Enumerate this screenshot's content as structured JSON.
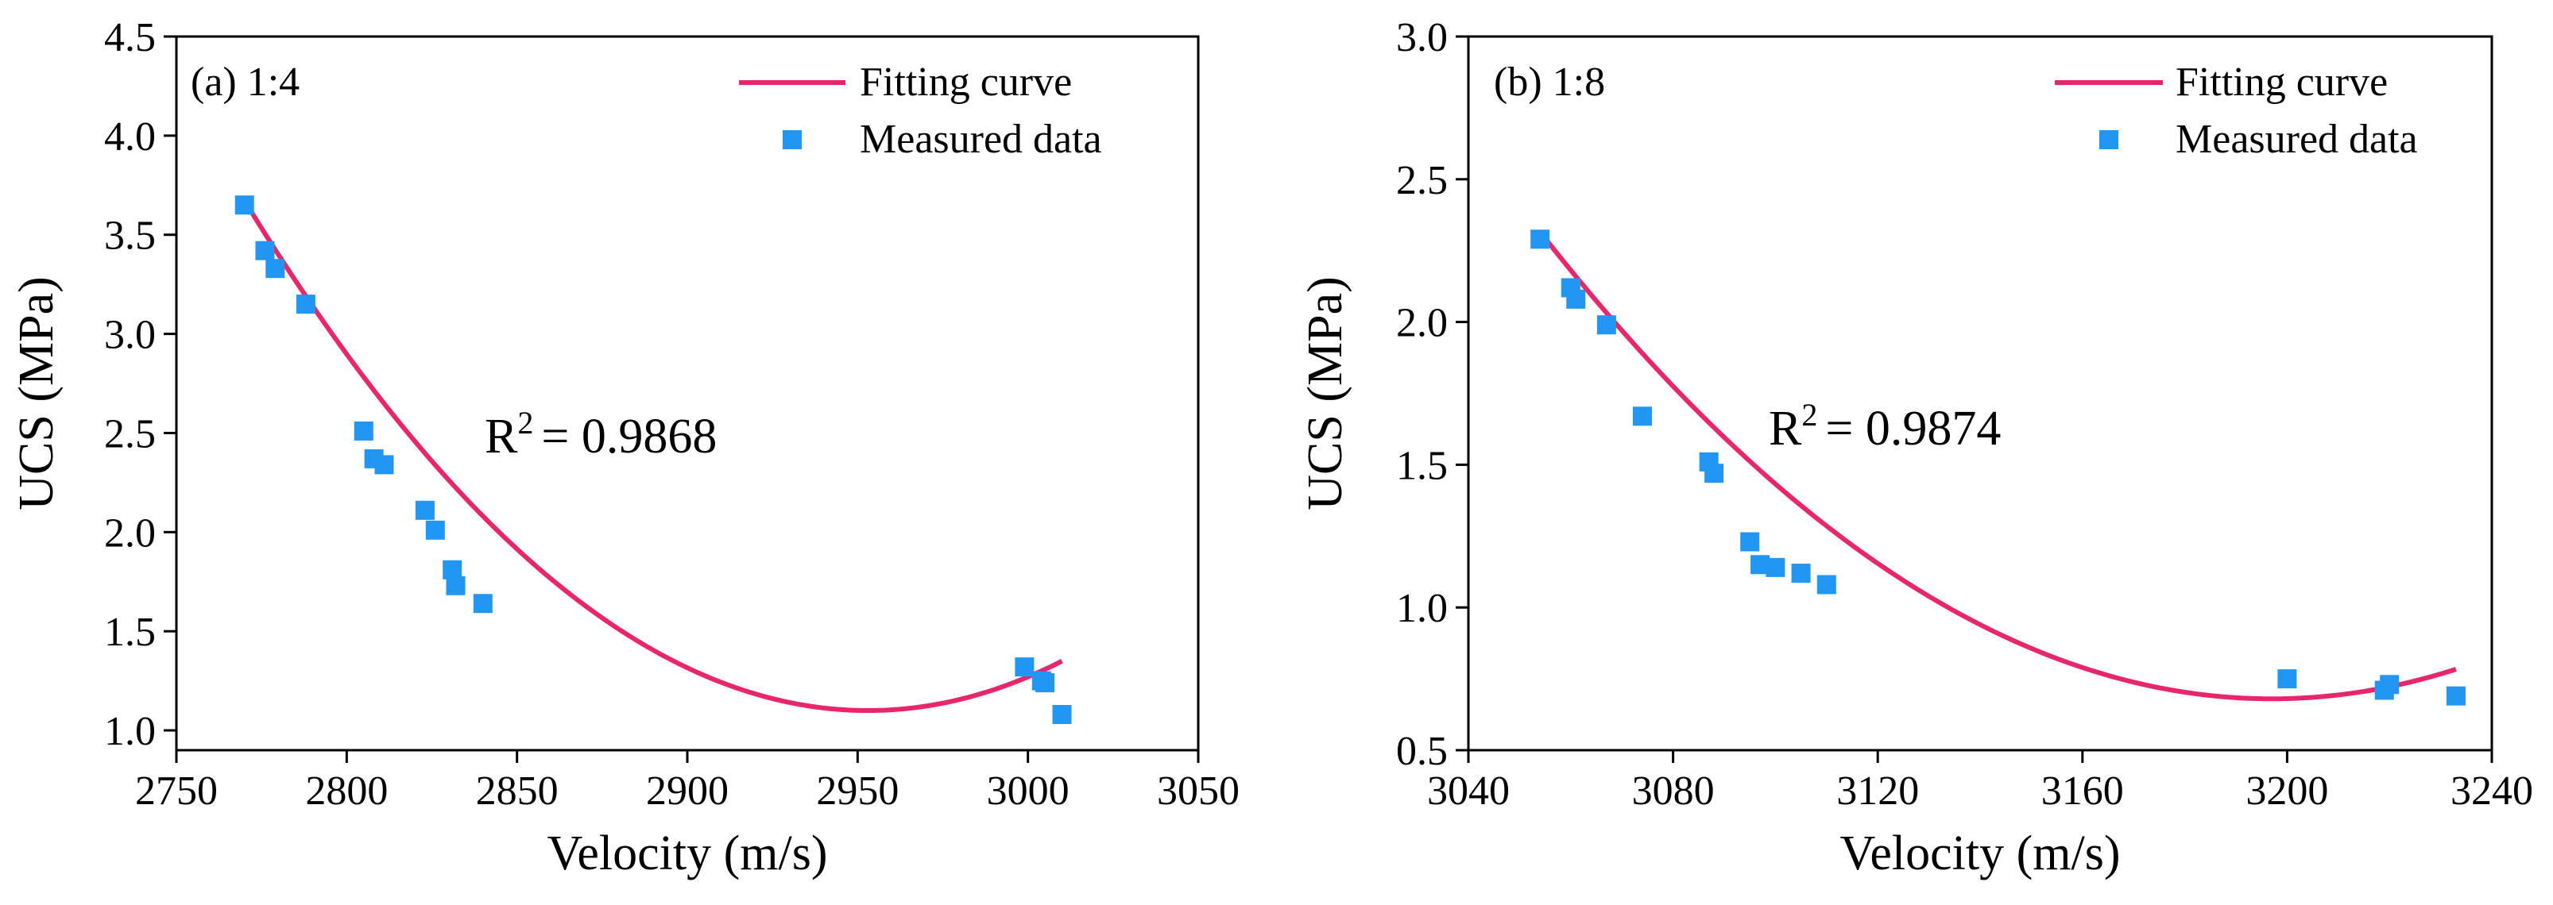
{
  "figure_title": "",
  "chart_data": [
    {
      "type": "scatter",
      "panel_label": "(a) 1:4",
      "xlabel": "Velocity (m/s)",
      "ylabel": "UCS (MPa)",
      "xlim": [
        2750,
        3050
      ],
      "ylim": [
        0.9,
        4.5
      ],
      "xticks": [
        2750,
        2800,
        2850,
        2900,
        2950,
        3000,
        3050
      ],
      "yticks": [
        1.0,
        1.5,
        2.0,
        2.5,
        3.0,
        3.5,
        4.0,
        4.5
      ],
      "xtick_labels": [
        "2750",
        "2800",
        "2850",
        "2900",
        "2950",
        "3000",
        "3050"
      ],
      "ytick_labels": [
        "1.0",
        "1.5",
        "2.0",
        "2.5",
        "3.0",
        "3.5",
        "4.0",
        "4.5"
      ],
      "grid": false,
      "legend_position": "top-right",
      "r2_base": "R",
      "r2_sup": "2",
      "r2_value": "= 0.9868",
      "series": [
        {
          "name": "Fitting curve",
          "kind": "line",
          "color": "#e8266b",
          "vertex_x": 2953,
          "vertex_y": 1.1,
          "x_range": [
            2770,
            3010
          ],
          "equation": "y = 1.1 + 7.68e-5 (x - 2953)^2"
        },
        {
          "name": "Measured data",
          "kind": "scatter",
          "color": "#2196f3",
          "points": [
            [
              2770,
              3.65
            ],
            [
              2776,
              3.42
            ],
            [
              2779,
              3.33
            ],
            [
              2788,
              3.15
            ],
            [
              2805,
              2.51
            ],
            [
              2808,
              2.37
            ],
            [
              2811,
              2.34
            ],
            [
              2823,
              2.11
            ],
            [
              2826,
              2.01
            ],
            [
              2831,
              1.81
            ],
            [
              2832,
              1.73
            ],
            [
              2840,
              1.64
            ],
            [
              2999,
              1.32
            ],
            [
              3004,
              1.25
            ],
            [
              3005,
              1.24
            ],
            [
              3010,
              1.08
            ]
          ]
        }
      ]
    },
    {
      "type": "scatter",
      "panel_label": "(b) 1:8",
      "xlabel": "Velocity (m/s)",
      "ylabel": "UCS (MPa)",
      "xlim": [
        3040,
        3240
      ],
      "ylim": [
        0.5,
        3.0
      ],
      "xticks": [
        3040,
        3080,
        3120,
        3160,
        3200,
        3240
      ],
      "yticks": [
        0.5,
        1.0,
        1.5,
        2.0,
        2.5,
        3.0
      ],
      "xtick_labels": [
        "3040",
        "3080",
        "3120",
        "3160",
        "3200",
        "3240"
      ],
      "ytick_labels": [
        "0.5",
        "1.0",
        "1.5",
        "2.0",
        "2.5",
        "3.0"
      ],
      "grid": false,
      "legend_position": "top-right",
      "r2_base": "R",
      "r2_sup": "2",
      "r2_value": "= 0.9874",
      "series": [
        {
          "name": "Fitting curve",
          "kind": "line",
          "color": "#e8266b",
          "vertex_x": 3197,
          "vertex_y": 0.68,
          "x_range": [
            3054,
            3233
          ],
          "equation": "y = 0.68 + 8.0e-5 (x - 3197)^2"
        },
        {
          "name": "Measured data",
          "kind": "scatter",
          "color": "#2196f3",
          "points": [
            [
              3054,
              2.29
            ],
            [
              3060,
              2.12
            ],
            [
              3061,
              2.08
            ],
            [
              3067,
              1.99
            ],
            [
              3074,
              1.67
            ],
            [
              3087,
              1.51
            ],
            [
              3088,
              1.47
            ],
            [
              3095,
              1.23
            ],
            [
              3097,
              1.15
            ],
            [
              3100,
              1.14
            ],
            [
              3105,
              1.12
            ],
            [
              3110,
              1.08
            ],
            [
              3200,
              0.75
            ],
            [
              3219,
              0.71
            ],
            [
              3220,
              0.73
            ],
            [
              3233,
              0.69
            ]
          ]
        }
      ]
    }
  ]
}
